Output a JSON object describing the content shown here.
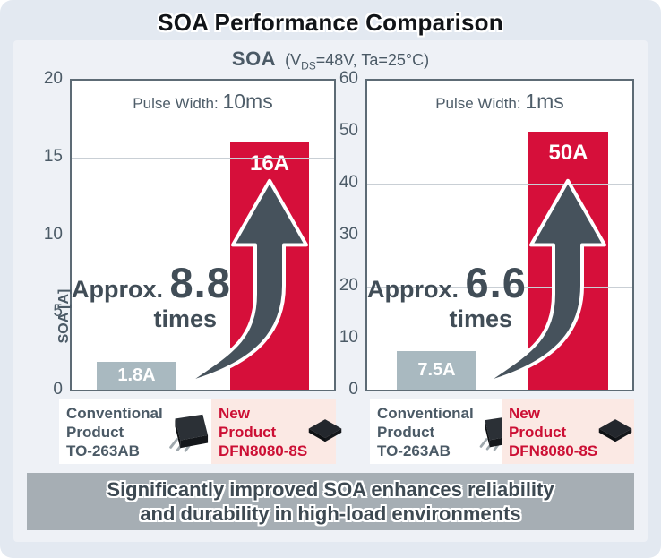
{
  "title": "SOA Performance Comparison",
  "subtitle": {
    "main": "SOA",
    "cond_open": "(V",
    "cond_sub": "DS",
    "cond_rest": "=48V, Ta=25°C)"
  },
  "banner": {
    "line1": "Significantly improved SOA enhances reliability",
    "line2": "and durability in high-load environments"
  },
  "legend": {
    "conventional": {
      "line1": "Conventional",
      "line2": "Product",
      "line3": "TO-263AB"
    },
    "new_product": {
      "line1": "New",
      "line2": "Product",
      "line3": "DFN8080-8S"
    }
  },
  "colors": {
    "red_bar": "#d60f3a",
    "gray_bar": "#a9b9c0",
    "slate_text": "#4b5a66",
    "arrow": "#46525c",
    "panel_bg": "#eef1f6",
    "card_bg": "#e3e9f1",
    "banner_bg": "#a6aeb4",
    "new_label_bg": "#fbe9e4",
    "new_label_text": "#cc0f34"
  },
  "chart_data": [
    {
      "type": "bar",
      "title": "SOA (VDS=48V, Ta=25°C)",
      "pulse_width_label": "Pulse Width:",
      "pulse_width_value": "10ms",
      "ylabel": "SOA [A]",
      "ylim": [
        0,
        20
      ],
      "yticks": [
        0,
        5,
        10,
        15,
        20
      ],
      "grid": true,
      "categories": [
        "Conventional Product TO-263AB",
        "New Product DFN8080-8S"
      ],
      "values": [
        1.8,
        16
      ],
      "bar_labels": [
        "1.8A",
        "16A"
      ],
      "bar_colors": [
        "gray",
        "red"
      ],
      "annotation": {
        "prefix": "Approx.",
        "multiplier": "8.8",
        "suffix": "times"
      }
    },
    {
      "type": "bar",
      "title": "SOA (VDS=48V, Ta=25°C)",
      "pulse_width_label": "Pulse Width:",
      "pulse_width_value": "1ms",
      "ylabel": "",
      "ylim": [
        0,
        60
      ],
      "yticks": [
        0,
        10,
        20,
        30,
        40,
        50,
        60
      ],
      "grid": true,
      "categories": [
        "Conventional Product TO-263AB",
        "New Product DFN8080-8S"
      ],
      "values": [
        7.5,
        50
      ],
      "bar_labels": [
        "7.5A",
        "50A"
      ],
      "bar_colors": [
        "gray",
        "red"
      ],
      "annotation": {
        "prefix": "Approx.",
        "multiplier": "6.6",
        "suffix": "times"
      }
    }
  ]
}
